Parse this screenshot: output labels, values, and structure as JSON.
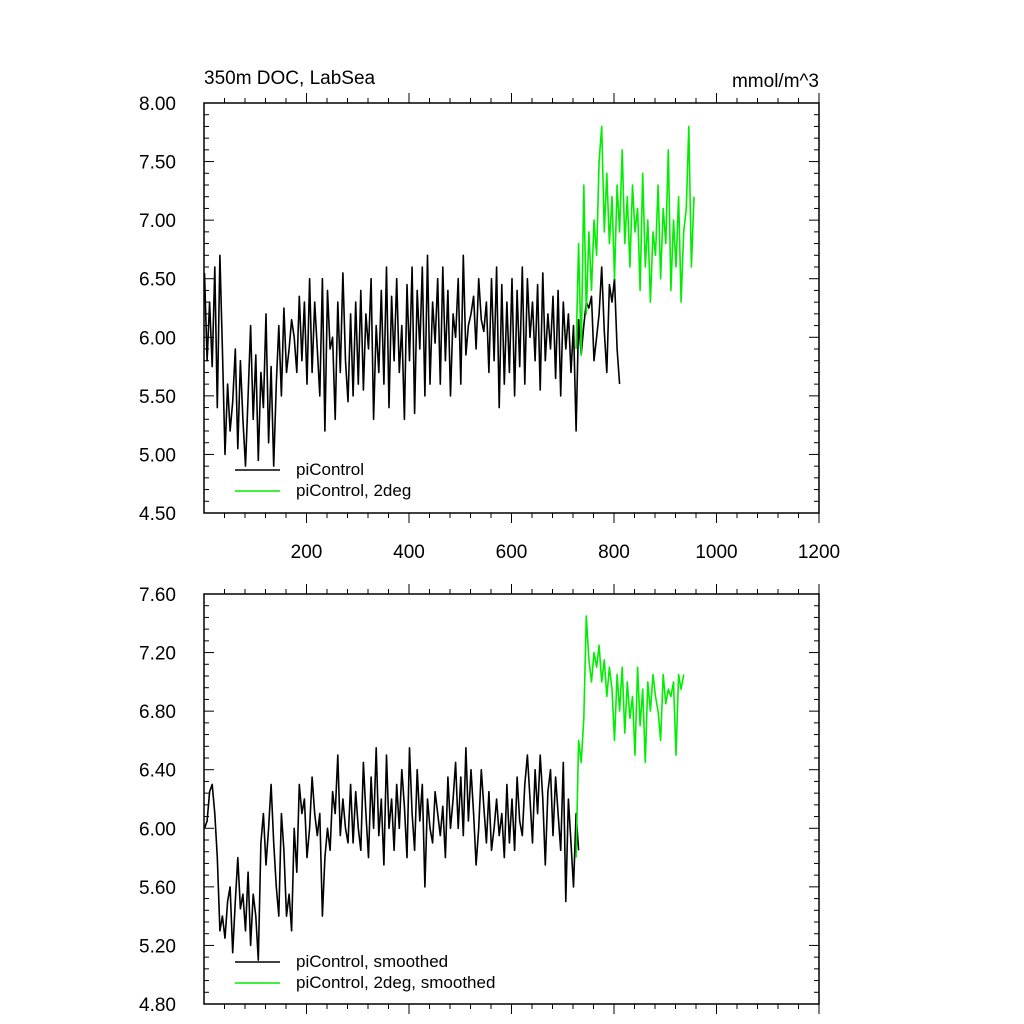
{
  "colors": {
    "control": "#000000",
    "twodeg": "#00ee00",
    "frame": "#000000"
  },
  "chart_data": [
    {
      "type": "line",
      "title": "350m DOC, LabSea",
      "units": "mmol/m^3",
      "xlim": [
        0,
        1200
      ],
      "ylim": [
        4.5,
        8.0
      ],
      "xticks": [
        200,
        400,
        600,
        800,
        1000,
        1200
      ],
      "xtick_labels": [
        "200",
        "400",
        "600",
        "800",
        "1000",
        "1200"
      ],
      "yticks": [
        4.5,
        5.0,
        5.5,
        6.0,
        6.5,
        7.0,
        7.5,
        8.0
      ],
      "ytick_labels": [
        "4.50",
        "5.00",
        "5.50",
        "6.00",
        "6.50",
        "7.00",
        "7.50",
        "8.00"
      ],
      "legend_position": "bottom-left",
      "series": [
        {
          "name": "piControl",
          "color": "#000000",
          "x_start": 1,
          "x_step": 5,
          "values": [
            6.55,
            5.8,
            6.3,
            5.75,
            6.6,
            5.4,
            6.7,
            5.9,
            5.0,
            5.6,
            5.2,
            5.45,
            5.9,
            5.05,
            5.8,
            5.3,
            4.9,
            5.5,
            6.1,
            5.3,
            5.85,
            4.95,
            5.7,
            5.4,
            6.2,
            5.1,
            5.75,
            4.9,
            5.6,
            6.1,
            5.5,
            6.25,
            5.7,
            5.9,
            6.15,
            6.0,
            5.7,
            6.35,
            5.8,
            6.3,
            5.6,
            6.5,
            5.7,
            6.3,
            5.9,
            5.5,
            6.5,
            5.2,
            6.4,
            5.9,
            6.0,
            5.3,
            6.3,
            5.7,
            6.55,
            5.8,
            5.45,
            6.2,
            5.5,
            6.3,
            5.6,
            6.4,
            5.55,
            6.2,
            5.9,
            6.5,
            5.3,
            6.1,
            5.7,
            6.4,
            5.6,
            6.6,
            5.4,
            6.35,
            5.8,
            6.5,
            5.7,
            6.1,
            5.3,
            6.45,
            5.8,
            6.6,
            5.35,
            6.4,
            5.9,
            6.6,
            5.5,
            6.7,
            5.6,
            6.3,
            5.95,
            6.5,
            5.6,
            6.6,
            5.8,
            6.4,
            5.5,
            6.2,
            6.0,
            6.5,
            5.6,
            6.7,
            5.85,
            6.1,
            6.2,
            6.35,
            5.9,
            6.5,
            6.15,
            6.05,
            6.3,
            5.7,
            6.5,
            5.8,
            6.6,
            5.4,
            6.45,
            5.6,
            6.3,
            5.7,
            6.5,
            5.5,
            6.4,
            5.75,
            6.6,
            5.6,
            6.5,
            6.0,
            6.3,
            5.8,
            6.45,
            5.55,
            6.55,
            5.8,
            6.2,
            5.9,
            6.35,
            5.65,
            6.4,
            5.5,
            6.3,
            5.9,
            6.2,
            5.7,
            6.1,
            5.2,
            6.15,
            5.85,
            6.1,
            6.3,
            6.25,
            6.35,
            5.8,
            6.0,
            6.2,
            6.6,
            6.05,
            5.7,
            6.45,
            6.3,
            6.5,
            5.9,
            5.6
          ]
        },
        {
          "name": "piControl, 2deg",
          "color": "#00ee00",
          "x_start": 726,
          "x_step": 5,
          "values": [
            5.9,
            6.8,
            5.85,
            7.3,
            6.2,
            6.9,
            6.4,
            7.0,
            6.7,
            7.5,
            7.8,
            6.9,
            7.4,
            6.8,
            7.2,
            6.5,
            7.3,
            6.9,
            7.6,
            6.8,
            7.2,
            6.6,
            7.3,
            6.9,
            7.1,
            6.4,
            7.4,
            6.6,
            7.0,
            6.3,
            6.9,
            6.7,
            7.3,
            6.5,
            7.1,
            6.8,
            7.6,
            6.4,
            7.0,
            6.6,
            7.2,
            6.3,
            6.9,
            7.1,
            7.8,
            6.6,
            7.2
          ]
        }
      ]
    },
    {
      "type": "line",
      "xlim": [
        0,
        1200
      ],
      "ylim": [
        4.8,
        7.6
      ],
      "xticks": [
        200,
        400,
        600,
        800,
        1000,
        1200
      ],
      "yticks": [
        4.8,
        5.2,
        5.6,
        6.0,
        6.4,
        6.8,
        7.2,
        7.6
      ],
      "ytick_labels": [
        "4.80",
        "5.20",
        "5.60",
        "6.00",
        "6.40",
        "6.80",
        "7.20",
        "7.60"
      ],
      "legend_position": "bottom-left",
      "series": [
        {
          "name": "piControl, smoothed",
          "color": "#000000",
          "x_start": 1,
          "x_step": 5,
          "values": [
            6.0,
            6.05,
            6.25,
            6.3,
            6.1,
            5.8,
            5.3,
            5.4,
            5.25,
            5.5,
            5.6,
            5.15,
            5.5,
            5.8,
            5.45,
            5.55,
            5.3,
            5.7,
            5.2,
            5.55,
            5.4,
            5.1,
            5.9,
            6.1,
            5.75,
            6.0,
            6.3,
            5.9,
            5.6,
            5.4,
            6.1,
            5.85,
            5.4,
            5.55,
            5.3,
            6.0,
            5.7,
            6.3,
            6.1,
            6.2,
            5.8,
            6.0,
            6.35,
            6.1,
            5.95,
            6.1,
            5.4,
            5.8,
            6.0,
            5.85,
            6.25,
            6.1,
            6.5,
            5.95,
            6.2,
            6.0,
            5.9,
            6.3,
            5.9,
            6.25,
            6.0,
            5.85,
            6.45,
            6.1,
            5.8,
            6.35,
            6.0,
            6.55,
            5.95,
            6.2,
            5.75,
            6.5,
            6.0,
            6.2,
            5.85,
            6.3,
            6.0,
            6.4,
            6.15,
            5.8,
            6.55,
            6.1,
            5.85,
            6.4,
            6.05,
            6.3,
            5.6,
            6.2,
            6.0,
            5.9,
            6.25,
            6.1,
            5.95,
            6.15,
            5.8,
            6.35,
            6.0,
            6.2,
            6.45,
            6.0,
            6.35,
            5.95,
            6.55,
            6.05,
            6.4,
            6.1,
            5.75,
            6.0,
            6.4,
            6.15,
            5.9,
            6.25,
            5.85,
            6.0,
            6.2,
            5.95,
            6.1,
            5.8,
            6.3,
            5.9,
            6.2,
            5.85,
            6.35,
            6.05,
            5.95,
            6.3,
            6.5,
            6.2,
            5.9,
            6.4,
            6.1,
            6.5,
            6.2,
            5.75,
            6.25,
            6.4,
            5.95,
            6.35,
            6.1,
            5.85,
            6.45,
            5.5,
            6.2,
            5.9,
            5.6,
            6.1,
            5.85
          ]
        },
        {
          "name": "piControl, 2deg, smoothed",
          "color": "#00ee00",
          "x_start": 726,
          "x_step": 5,
          "values": [
            5.8,
            6.6,
            6.45,
            6.75,
            7.45,
            7.15,
            7.0,
            7.2,
            7.1,
            7.25,
            7.0,
            7.15,
            6.9,
            7.1,
            6.95,
            6.6,
            7.05,
            6.8,
            7.1,
            6.65,
            7.0,
            6.75,
            6.9,
            6.5,
            7.1,
            6.7,
            6.95,
            6.45,
            7.0,
            6.8,
            7.05,
            6.9,
            6.8,
            6.6,
            7.05,
            6.85,
            6.95,
            6.9,
            7.0,
            6.5,
            7.05,
            6.95,
            7.05
          ]
        }
      ]
    }
  ]
}
